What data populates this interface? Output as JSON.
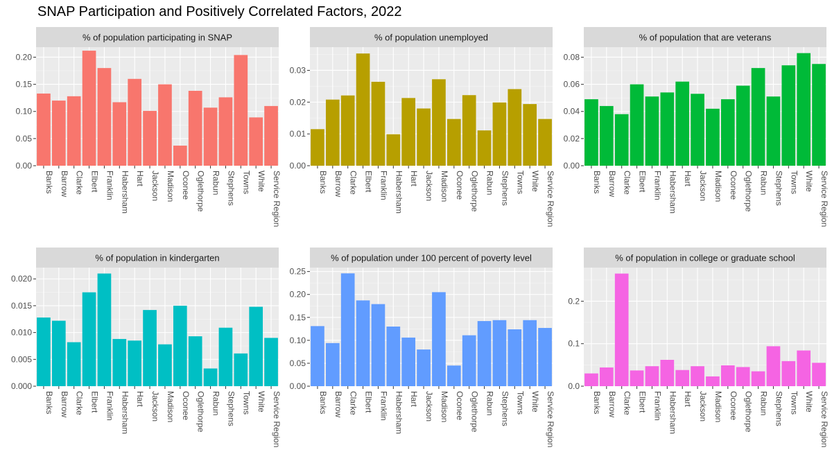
{
  "title": "SNAP Participation and Positively Correlated Factors, 2022",
  "categories": [
    "Banks",
    "Barrow",
    "Clarke",
    "Elbert",
    "Franklin",
    "Habersham",
    "Hart",
    "Jackson",
    "Madison",
    "Oconee",
    "Oglethorpe",
    "Rabun",
    "Stephens",
    "Towns",
    "White",
    "Service Region"
  ],
  "chart_data": [
    {
      "type": "bar",
      "title": "% of population participating in SNAP",
      "categories": [
        "Banks",
        "Barrow",
        "Clarke",
        "Elbert",
        "Franklin",
        "Habersham",
        "Hart",
        "Jackson",
        "Madison",
        "Oconee",
        "Oglethorpe",
        "Rabun",
        "Stephens",
        "Towns",
        "White",
        "Service Region"
      ],
      "values": [
        0.133,
        0.12,
        0.128,
        0.212,
        0.18,
        0.117,
        0.16,
        0.101,
        0.15,
        0.037,
        0.138,
        0.107,
        0.126,
        0.204,
        0.089,
        0.11
      ],
      "ylim": [
        0,
        0.2185
      ],
      "yticks": [
        0.0,
        0.05,
        0.1,
        0.15,
        0.2
      ],
      "ytick_labels": [
        "0.00",
        "0.05",
        "0.10",
        "0.15",
        "0.20"
      ],
      "color": "#F8766D",
      "grid": true
    },
    {
      "type": "bar",
      "title": "% of population unemployed",
      "categories": [
        "Banks",
        "Barrow",
        "Clarke",
        "Elbert",
        "Franklin",
        "Habersham",
        "Hart",
        "Jackson",
        "Madison",
        "Oconee",
        "Oglethorpe",
        "Rabun",
        "Stephens",
        "Towns",
        "White",
        "Service Region"
      ],
      "values": [
        0.0115,
        0.0208,
        0.0221,
        0.0353,
        0.0264,
        0.0099,
        0.0213,
        0.018,
        0.0272,
        0.0147,
        0.0222,
        0.0111,
        0.0199,
        0.0241,
        0.0194,
        0.0147
      ],
      "ylim": [
        0,
        0.0373
      ],
      "yticks": [
        0.0,
        0.01,
        0.02,
        0.03
      ],
      "ytick_labels": [
        "0.00",
        "0.01",
        "0.02",
        "0.03"
      ],
      "color": "#B79F00",
      "grid": true
    },
    {
      "type": "bar",
      "title": "% of population that are veterans",
      "categories": [
        "Banks",
        "Barrow",
        "Clarke",
        "Elbert",
        "Franklin",
        "Habersham",
        "Hart",
        "Jackson",
        "Madison",
        "Oconee",
        "Oglethorpe",
        "Rabun",
        "Stephens",
        "Towns",
        "White",
        "Service Region"
      ],
      "values": [
        0.049,
        0.044,
        0.038,
        0.06,
        0.051,
        0.054,
        0.062,
        0.053,
        0.042,
        0.049,
        0.059,
        0.072,
        0.051,
        0.074,
        0.083,
        0.075
      ],
      "ylim": [
        0,
        0.0874
      ],
      "yticks": [
        0.0,
        0.02,
        0.04,
        0.06,
        0.08
      ],
      "ytick_labels": [
        "0.00",
        "0.02",
        "0.04",
        "0.06",
        "0.08"
      ],
      "color": "#00BA38",
      "grid": true
    },
    {
      "type": "bar",
      "title": "% of population in kindergarten",
      "categories": [
        "Banks",
        "Barrow",
        "Clarke",
        "Elbert",
        "Franklin",
        "Habersham",
        "Hart",
        "Jackson",
        "Madison",
        "Oconee",
        "Oglethorpe",
        "Rabun",
        "Stephens",
        "Towns",
        "White",
        "Service Region"
      ],
      "values": [
        0.0128,
        0.0122,
        0.0082,
        0.0175,
        0.021,
        0.0088,
        0.0085,
        0.0142,
        0.0078,
        0.015,
        0.0093,
        0.0033,
        0.0109,
        0.0061,
        0.0148,
        0.009
      ],
      "ylim": [
        0,
        0.0221
      ],
      "yticks": [
        0.0,
        0.005,
        0.01,
        0.015,
        0.02
      ],
      "ytick_labels": [
        "0.000",
        "0.005",
        "0.010",
        "0.015",
        "0.020"
      ],
      "color": "#00BFC4",
      "grid": true
    },
    {
      "type": "bar",
      "title": "% of population under 100 percent of poverty level",
      "categories": [
        "Banks",
        "Barrow",
        "Clarke",
        "Elbert",
        "Franklin",
        "Habersham",
        "Hart",
        "Jackson",
        "Madison",
        "Oconee",
        "Oglethorpe",
        "Rabun",
        "Stephens",
        "Towns",
        "White",
        "Service Region"
      ],
      "values": [
        0.131,
        0.094,
        0.246,
        0.187,
        0.179,
        0.13,
        0.106,
        0.08,
        0.205,
        0.045,
        0.111,
        0.142,
        0.144,
        0.124,
        0.144,
        0.127
      ],
      "ylim": [
        0,
        0.2585
      ],
      "yticks": [
        0.0,
        0.05,
        0.1,
        0.15,
        0.2,
        0.25
      ],
      "ytick_labels": [
        "0.00",
        "0.05",
        "0.10",
        "0.15",
        "0.20",
        "0.25"
      ],
      "color": "#619CFF",
      "grid": true
    },
    {
      "type": "bar",
      "title": "% of population in college or graduate school",
      "categories": [
        "Banks",
        "Barrow",
        "Clarke",
        "Elbert",
        "Franklin",
        "Habersham",
        "Hart",
        "Jackson",
        "Madison",
        "Oconee",
        "Oglethorpe",
        "Rabun",
        "Stephens",
        "Towns",
        "White",
        "Service Region"
      ],
      "values": [
        0.03,
        0.044,
        0.265,
        0.037,
        0.047,
        0.062,
        0.038,
        0.047,
        0.023,
        0.049,
        0.045,
        0.035,
        0.094,
        0.059,
        0.084,
        0.055
      ],
      "ylim": [
        0,
        0.279
      ],
      "yticks": [
        0.0,
        0.1,
        0.2
      ],
      "ytick_labels": [
        "0.0",
        "0.1",
        "0.2"
      ],
      "color": "#F564E3",
      "grid": true
    }
  ]
}
